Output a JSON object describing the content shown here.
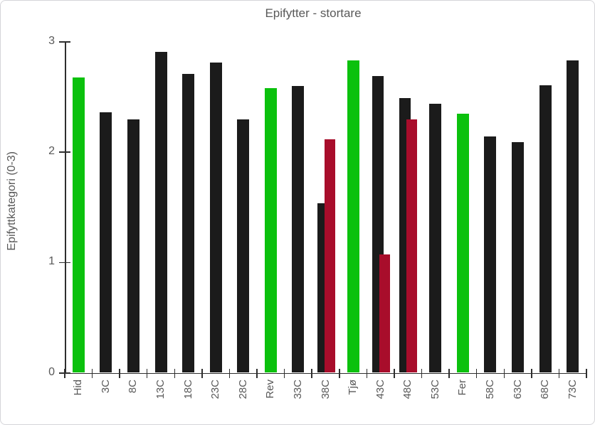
{
  "window": {
    "background": "#ffffff",
    "border_color": "#d5d5d9"
  },
  "chart_data": {
    "type": "bar",
    "title": "Epifytter - stortare",
    "xlabel": "",
    "ylabel": "Epifyttkategori (0-3)",
    "ylim": [
      0,
      3
    ],
    "yticks": [
      0,
      1,
      2,
      3
    ],
    "grid": false,
    "legend": false,
    "text_color": "#595959",
    "axis_color": "#2e2e2e",
    "palette": {
      "green": "#0bc10d",
      "black": "#1b1b1b",
      "darkred": "#a80d2b"
    },
    "categories": [
      {
        "label": "Hid",
        "bars": [
          {
            "value": 2.68,
            "color": "green"
          }
        ]
      },
      {
        "label": "3C",
        "bars": [
          {
            "value": 2.36,
            "color": "black"
          }
        ]
      },
      {
        "label": "8C",
        "bars": [
          {
            "value": 2.3,
            "color": "black"
          }
        ]
      },
      {
        "label": "13C",
        "bars": [
          {
            "value": 2.91,
            "color": "black"
          }
        ]
      },
      {
        "label": "18C",
        "bars": [
          {
            "value": 2.71,
            "color": "black"
          }
        ]
      },
      {
        "label": "23C",
        "bars": [
          {
            "value": 2.81,
            "color": "black"
          }
        ]
      },
      {
        "label": "28C",
        "bars": [
          {
            "value": 2.3,
            "color": "black"
          }
        ]
      },
      {
        "label": "Rev",
        "bars": [
          {
            "value": 2.58,
            "color": "green"
          }
        ]
      },
      {
        "label": "33C",
        "bars": [
          {
            "value": 2.6,
            "color": "black"
          }
        ]
      },
      {
        "label": "38C",
        "bars": [
          {
            "value": 1.54,
            "color": "black"
          },
          {
            "value": 2.12,
            "color": "darkred"
          }
        ]
      },
      {
        "label": "Tjø",
        "bars": [
          {
            "value": 2.83,
            "color": "green"
          }
        ]
      },
      {
        "label": "43C",
        "bars": [
          {
            "value": 2.69,
            "color": "black"
          },
          {
            "value": 1.07,
            "color": "darkred"
          }
        ]
      },
      {
        "label": "48C",
        "bars": [
          {
            "value": 2.49,
            "color": "black"
          },
          {
            "value": 2.3,
            "color": "darkred"
          }
        ]
      },
      {
        "label": "53C",
        "bars": [
          {
            "value": 2.44,
            "color": "black"
          }
        ]
      },
      {
        "label": "Fer",
        "bars": [
          {
            "value": 2.35,
            "color": "green"
          }
        ]
      },
      {
        "label": "58C",
        "bars": [
          {
            "value": 2.14,
            "color": "black"
          }
        ]
      },
      {
        "label": "63C",
        "bars": [
          {
            "value": 2.09,
            "color": "black"
          }
        ]
      },
      {
        "label": "68C",
        "bars": [
          {
            "value": 2.61,
            "color": "black"
          }
        ]
      },
      {
        "label": "73C",
        "bars": [
          {
            "value": 2.83,
            "color": "black"
          }
        ]
      }
    ]
  }
}
